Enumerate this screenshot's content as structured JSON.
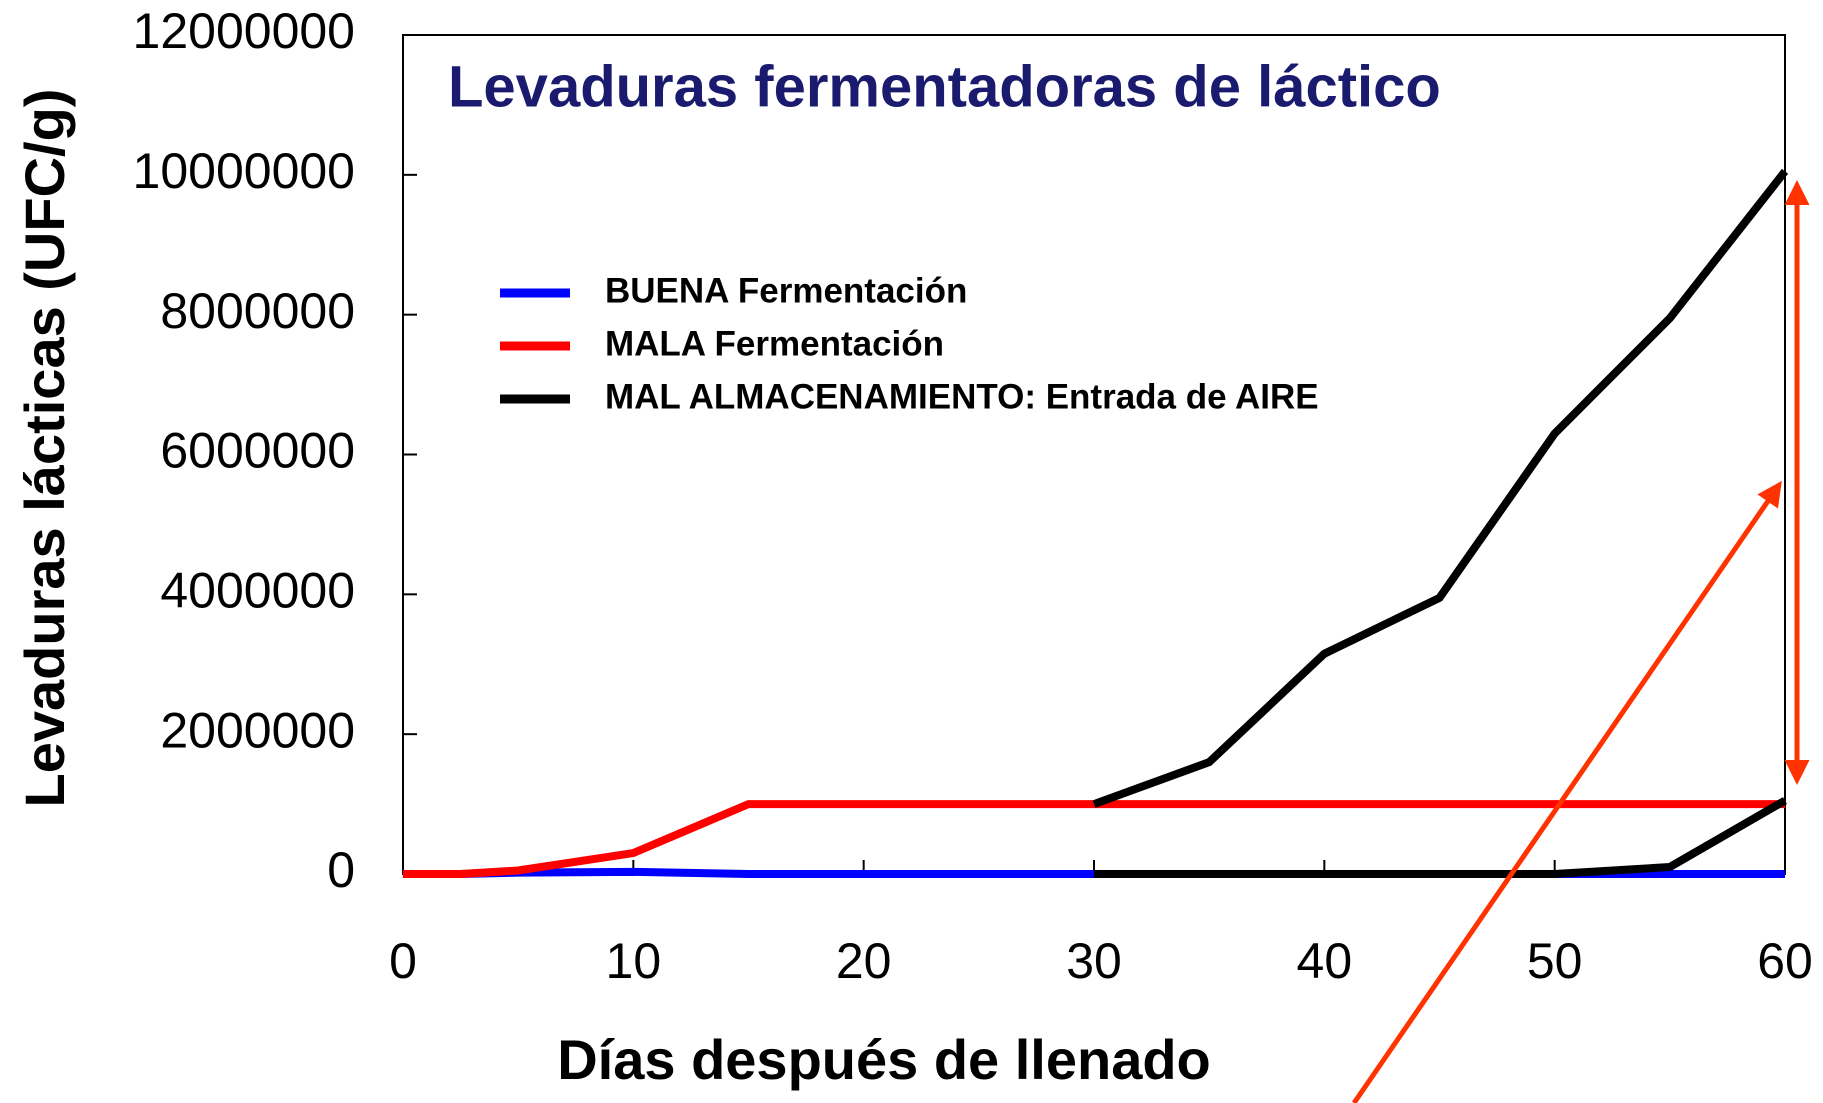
{
  "chart_data": {
    "type": "line",
    "title": "Levaduras fermentadoras de láctico",
    "xlabel": "Días después de llenado",
    "ylabel": "Levaduras lácticas (UFC/g)",
    "xlim": [
      0,
      60
    ],
    "xticks": [
      0,
      10,
      20,
      30,
      40,
      50,
      60
    ],
    "ylim": [
      0,
      12000000
    ],
    "yticks": [
      0,
      2000000,
      4000000,
      6000000,
      8000000,
      10000000,
      12000000
    ],
    "series": [
      {
        "name": "BUENA Fermentación",
        "color": "#0000ff",
        "x": [
          0,
          2.5,
          5,
          10,
          15,
          20,
          25,
          30,
          35,
          40,
          45,
          50,
          55,
          60
        ],
        "values": [
          0,
          0,
          20000,
          30000,
          0,
          0,
          0,
          0,
          0,
          0,
          0,
          0,
          0,
          0
        ]
      },
      {
        "name": "MALA Fermentación",
        "color": "#ff0000",
        "x": [
          0,
          2.5,
          5,
          10,
          15,
          20,
          25,
          30,
          35,
          40,
          45,
          50,
          55,
          60
        ],
        "values": [
          0,
          0,
          50000,
          300000,
          1000000,
          1000000,
          1000000,
          1000000,
          1000000,
          1000000,
          1000000,
          1000000,
          1000000,
          1000000
        ]
      },
      {
        "name": "MAL ALMACENAMIENTO: Entrada de AIRE",
        "color": "#000000",
        "x": [
          30,
          35,
          40,
          45,
          50,
          55,
          60,
          null,
          30,
          35,
          40,
          45,
          50,
          55,
          60
        ],
        "values": [
          1000000,
          1600000,
          3150000,
          3950000,
          6300000,
          7950000,
          10050000,
          null,
          0,
          0,
          0,
          0,
          0,
          100000,
          1050000
        ]
      }
    ]
  }
}
